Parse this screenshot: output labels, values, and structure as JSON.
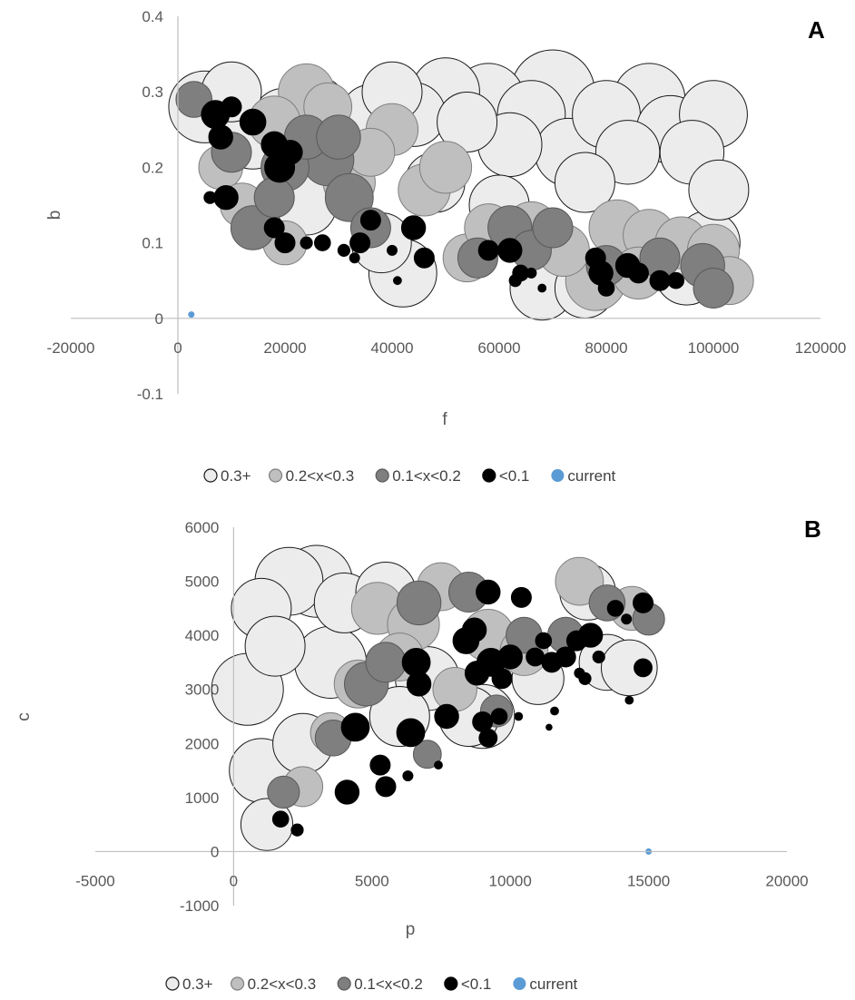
{
  "chart_data": [
    {
      "type": "scatter",
      "variant": "bubble",
      "panel": "A",
      "xlabel": "f",
      "ylabel": "b",
      "xlim": [
        -20000,
        120000
      ],
      "ylim": [
        -0.1,
        0.4
      ],
      "xticks": [
        "-20000",
        "0",
        "20000",
        "40000",
        "60000",
        "80000",
        "100000",
        "120000"
      ],
      "yticks": [
        "-0.1",
        "0",
        "0.1",
        "0.2",
        "0.3",
        "0.4"
      ],
      "grid": false,
      "legend_position": "bottom",
      "series": [
        {
          "name": "0.3+",
          "color": "#ececec",
          "outline": "#1a1a1a",
          "points": [
            [
              5000,
              0.28,
              3.6
            ],
            [
              10000,
              0.3,
              3.0
            ],
            [
              14000,
              0.24,
              3.2
            ],
            [
              20000,
              0.26,
              3.4
            ],
            [
              26000,
              0.28,
              3.0
            ],
            [
              30000,
              0.2,
              3.2
            ],
            [
              36000,
              0.27,
              3.0
            ],
            [
              40000,
              0.3,
              3.0
            ],
            [
              44000,
              0.27,
              3.2
            ],
            [
              50000,
              0.3,
              3.4
            ],
            [
              54000,
              0.26,
              3.0
            ],
            [
              58000,
              0.29,
              3.6
            ],
            [
              62000,
              0.23,
              3.2
            ],
            [
              66000,
              0.27,
              3.4
            ],
            [
              70000,
              0.3,
              4.2
            ],
            [
              73000,
              0.22,
              3.4
            ],
            [
              76000,
              0.18,
              3.0
            ],
            [
              80000,
              0.27,
              3.4
            ],
            [
              84000,
              0.22,
              3.2
            ],
            [
              88000,
              0.29,
              3.6
            ],
            [
              92000,
              0.25,
              3.4
            ],
            [
              96000,
              0.22,
              3.2
            ],
            [
              100000,
              0.27,
              3.4
            ],
            [
              101000,
              0.17,
              3.0
            ],
            [
              99000,
              0.1,
              3.2
            ],
            [
              42000,
              0.06,
              3.4
            ],
            [
              38000,
              0.1,
              3.0
            ],
            [
              68000,
              0.04,
              3.2
            ],
            [
              76000,
              0.04,
              3.0
            ],
            [
              95000,
              0.06,
              3.2
            ],
            [
              86000,
              0.07,
              3.0
            ],
            [
              24000,
              0.15,
              3.0
            ],
            [
              60000,
              0.15,
              3.0
            ],
            [
              48000,
              0.18,
              3.0
            ]
          ]
        },
        {
          "name": "0.2<x<0.3",
          "color": "#bfbfbf",
          "outline": "#7f7f7f",
          "points": [
            [
              8000,
              0.2,
              2.2
            ],
            [
              18000,
              0.26,
              2.6
            ],
            [
              24000,
              0.3,
              2.8
            ],
            [
              28000,
              0.28,
              2.4
            ],
            [
              32000,
              0.18,
              2.6
            ],
            [
              36000,
              0.22,
              2.4
            ],
            [
              40000,
              0.25,
              2.6
            ],
            [
              46000,
              0.17,
              2.6
            ],
            [
              50000,
              0.2,
              2.6
            ],
            [
              54000,
              0.08,
              2.4
            ],
            [
              58000,
              0.12,
              2.4
            ],
            [
              66000,
              0.12,
              2.6
            ],
            [
              72000,
              0.09,
              2.6
            ],
            [
              78000,
              0.05,
              3.0
            ],
            [
              82000,
              0.12,
              2.8
            ],
            [
              88000,
              0.11,
              2.6
            ],
            [
              94000,
              0.1,
              2.6
            ],
            [
              100000,
              0.09,
              2.6
            ],
            [
              103000,
              0.05,
              2.4
            ],
            [
              86000,
              0.06,
              2.6
            ],
            [
              20000,
              0.1,
              2.2
            ],
            [
              12000,
              0.15,
              2.2
            ]
          ]
        },
        {
          "name": "0.1<x<0.2",
          "color": "#7f7f7f",
          "outline": "#595959",
          "points": [
            [
              3000,
              0.29,
              1.8
            ],
            [
              10000,
              0.22,
              2.0
            ],
            [
              14000,
              0.12,
              2.2
            ],
            [
              20000,
              0.2,
              2.4
            ],
            [
              24000,
              0.24,
              2.2
            ],
            [
              28000,
              0.21,
              2.6
            ],
            [
              32000,
              0.16,
              2.4
            ],
            [
              36000,
              0.12,
              2.0
            ],
            [
              30000,
              0.24,
              2.2
            ],
            [
              18000,
              0.16,
              2.0
            ],
            [
              56000,
              0.08,
              2.0
            ],
            [
              62000,
              0.12,
              2.2
            ],
            [
              66000,
              0.09,
              2.0
            ],
            [
              70000,
              0.12,
              2.0
            ],
            [
              90000,
              0.08,
              2.0
            ],
            [
              98000,
              0.07,
              2.2
            ],
            [
              100000,
              0.04,
              2.0
            ],
            [
              80000,
              0.07,
              2.0
            ]
          ]
        },
        {
          "name": "<0.1",
          "color": "#000000",
          "outline": "#000000",
          "points": [
            [
              7000,
              0.27,
              1.4
            ],
            [
              8000,
              0.24,
              1.2
            ],
            [
              10000,
              0.28,
              1.0
            ],
            [
              14000,
              0.26,
              1.3
            ],
            [
              18000,
              0.23,
              1.3
            ],
            [
              19000,
              0.2,
              1.5
            ],
            [
              21000,
              0.22,
              1.2
            ],
            [
              9000,
              0.16,
              1.2
            ],
            [
              6000,
              0.16,
              0.6
            ],
            [
              18000,
              0.12,
              1.0
            ],
            [
              20000,
              0.1,
              1.0
            ],
            [
              24000,
              0.1,
              0.6
            ],
            [
              27000,
              0.1,
              0.8
            ],
            [
              31000,
              0.09,
              0.6
            ],
            [
              34000,
              0.1,
              1.0
            ],
            [
              36000,
              0.13,
              1.0
            ],
            [
              33000,
              0.08,
              0.5
            ],
            [
              40000,
              0.09,
              0.5
            ],
            [
              41000,
              0.05,
              0.4
            ],
            [
              44000,
              0.12,
              1.2
            ],
            [
              46000,
              0.08,
              1.0
            ],
            [
              58000,
              0.09,
              1.0
            ],
            [
              62000,
              0.09,
              1.2
            ],
            [
              64000,
              0.06,
              0.8
            ],
            [
              63000,
              0.05,
              0.6
            ],
            [
              66000,
              0.06,
              0.5
            ],
            [
              68000,
              0.04,
              0.4
            ],
            [
              78000,
              0.08,
              1.0
            ],
            [
              79000,
              0.06,
              1.2
            ],
            [
              80000,
              0.04,
              0.8
            ],
            [
              84000,
              0.07,
              1.2
            ],
            [
              86000,
              0.06,
              1.0
            ],
            [
              90000,
              0.05,
              1.0
            ],
            [
              93000,
              0.05,
              0.8
            ]
          ]
        },
        {
          "name": "current",
          "color": "#5b9bd5",
          "outline": "#5b9bd5",
          "points": [
            [
              2500,
              0.005,
              0.32
            ]
          ]
        }
      ]
    },
    {
      "type": "scatter",
      "variant": "bubble",
      "panel": "B",
      "xlabel": "p",
      "ylabel": "c",
      "xlim": [
        -5000,
        20000
      ],
      "ylim": [
        -1000,
        6000
      ],
      "xticks": [
        "-5000",
        "0",
        "5000",
        "10000",
        "15000",
        "20000"
      ],
      "yticks": [
        "-1000",
        "0",
        "1000",
        "2000",
        "3000",
        "4000",
        "5000",
        "6000"
      ],
      "grid": false,
      "legend_position": "bottom",
      "series": [
        {
          "name": "0.3+",
          "color": "#ececec",
          "outline": "#1a1a1a",
          "points": [
            [
              1200,
              500,
              2.6
            ],
            [
              1000,
              1500,
              3.2
            ],
            [
              500,
              3000,
              3.6
            ],
            [
              1000,
              4500,
              3.0
            ],
            [
              2000,
              5000,
              3.4
            ],
            [
              3000,
              5000,
              3.6
            ],
            [
              4000,
              4600,
              3.0
            ],
            [
              3500,
              3500,
              3.6
            ],
            [
              5500,
              4800,
              3.0
            ],
            [
              7000,
              3200,
              3.2
            ],
            [
              6000,
              2500,
              3.0
            ],
            [
              8500,
              2500,
              3.0
            ],
            [
              9000,
              2500,
              3.2
            ],
            [
              12800,
              4800,
              2.8
            ],
            [
              13500,
              3500,
              2.8
            ],
            [
              14300,
              3400,
              2.8
            ],
            [
              2500,
              2000,
              3.0
            ],
            [
              1500,
              3800,
              3.0
            ],
            [
              11000,
              3200,
              2.6
            ]
          ]
        },
        {
          "name": "0.2<x<0.3",
          "color": "#bfbfbf",
          "outline": "#7f7f7f",
          "points": [
            [
              2500,
              1200,
              2.0
            ],
            [
              4500,
              3100,
              2.4
            ],
            [
              5200,
              4500,
              2.6
            ],
            [
              6000,
              3600,
              2.4
            ],
            [
              7500,
              4900,
              2.4
            ],
            [
              6500,
              4200,
              2.6
            ],
            [
              9200,
              4000,
              2.6
            ],
            [
              10500,
              3700,
              2.4
            ],
            [
              12500,
              5000,
              2.4
            ],
            [
              14400,
              4500,
              2.2
            ],
            [
              8000,
              3000,
              2.2
            ],
            [
              3500,
              2200,
              2.0
            ]
          ]
        },
        {
          "name": "0.1<x<0.2",
          "color": "#7f7f7f",
          "outline": "#595959",
          "points": [
            [
              1800,
              1100,
              1.6
            ],
            [
              3600,
              2100,
              1.8
            ],
            [
              4800,
              3100,
              2.2
            ],
            [
              5500,
              3500,
              2.0
            ],
            [
              6700,
              4600,
              2.2
            ],
            [
              8500,
              4800,
              2.0
            ],
            [
              7000,
              1800,
              1.4
            ],
            [
              12000,
              4000,
              1.8
            ],
            [
              13500,
              4600,
              1.8
            ],
            [
              15000,
              4300,
              1.6
            ],
            [
              9500,
              2600,
              1.6
            ],
            [
              10500,
              4000,
              1.8
            ]
          ]
        },
        {
          "name": "<0.1",
          "color": "#000000",
          "outline": "#000000",
          "points": [
            [
              1700,
              600,
              0.8
            ],
            [
              2300,
              400,
              0.6
            ],
            [
              4100,
              1100,
              1.2
            ],
            [
              5300,
              1600,
              1.0
            ],
            [
              5500,
              1200,
              1.0
            ],
            [
              4400,
              2300,
              1.4
            ],
            [
              6300,
              1400,
              0.5
            ],
            [
              6400,
              2200,
              1.4
            ],
            [
              7400,
              1600,
              0.4
            ],
            [
              6600,
              3500,
              1.4
            ],
            [
              6700,
              3100,
              1.2
            ],
            [
              7700,
              2500,
              1.2
            ],
            [
              8400,
              3900,
              1.3
            ],
            [
              8700,
              4100,
              1.2
            ],
            [
              8800,
              3300,
              1.2
            ],
            [
              9300,
              3500,
              1.4
            ],
            [
              9000,
              2400,
              1.0
            ],
            [
              9200,
              2100,
              0.9
            ],
            [
              9600,
              2500,
              0.8
            ],
            [
              9700,
              3200,
              1.0
            ],
            [
              10000,
              3600,
              1.2
            ],
            [
              10300,
              2500,
              0.4
            ],
            [
              9200,
              4800,
              1.2
            ],
            [
              10400,
              4700,
              1.0
            ],
            [
              10900,
              3600,
              0.9
            ],
            [
              11200,
              3900,
              0.8
            ],
            [
              11500,
              3500,
              1.0
            ],
            [
              12000,
              3600,
              1.0
            ],
            [
              12400,
              3900,
              1.0
            ],
            [
              12900,
              4000,
              1.2
            ],
            [
              12500,
              3300,
              0.5
            ],
            [
              12700,
              3200,
              0.6
            ],
            [
              13200,
              3600,
              0.6
            ],
            [
              13800,
              4500,
              0.8
            ],
            [
              14200,
              4300,
              0.5
            ],
            [
              14800,
              4600,
              1.0
            ],
            [
              14800,
              3400,
              0.9
            ],
            [
              14300,
              2800,
              0.4
            ],
            [
              11400,
              2300,
              0.3
            ],
            [
              11600,
              2600,
              0.4
            ]
          ]
        },
        {
          "name": "current",
          "color": "#5b9bd5",
          "outline": "#5b9bd5",
          "points": [
            [
              15000,
              0,
              0.32
            ]
          ]
        }
      ]
    }
  ]
}
